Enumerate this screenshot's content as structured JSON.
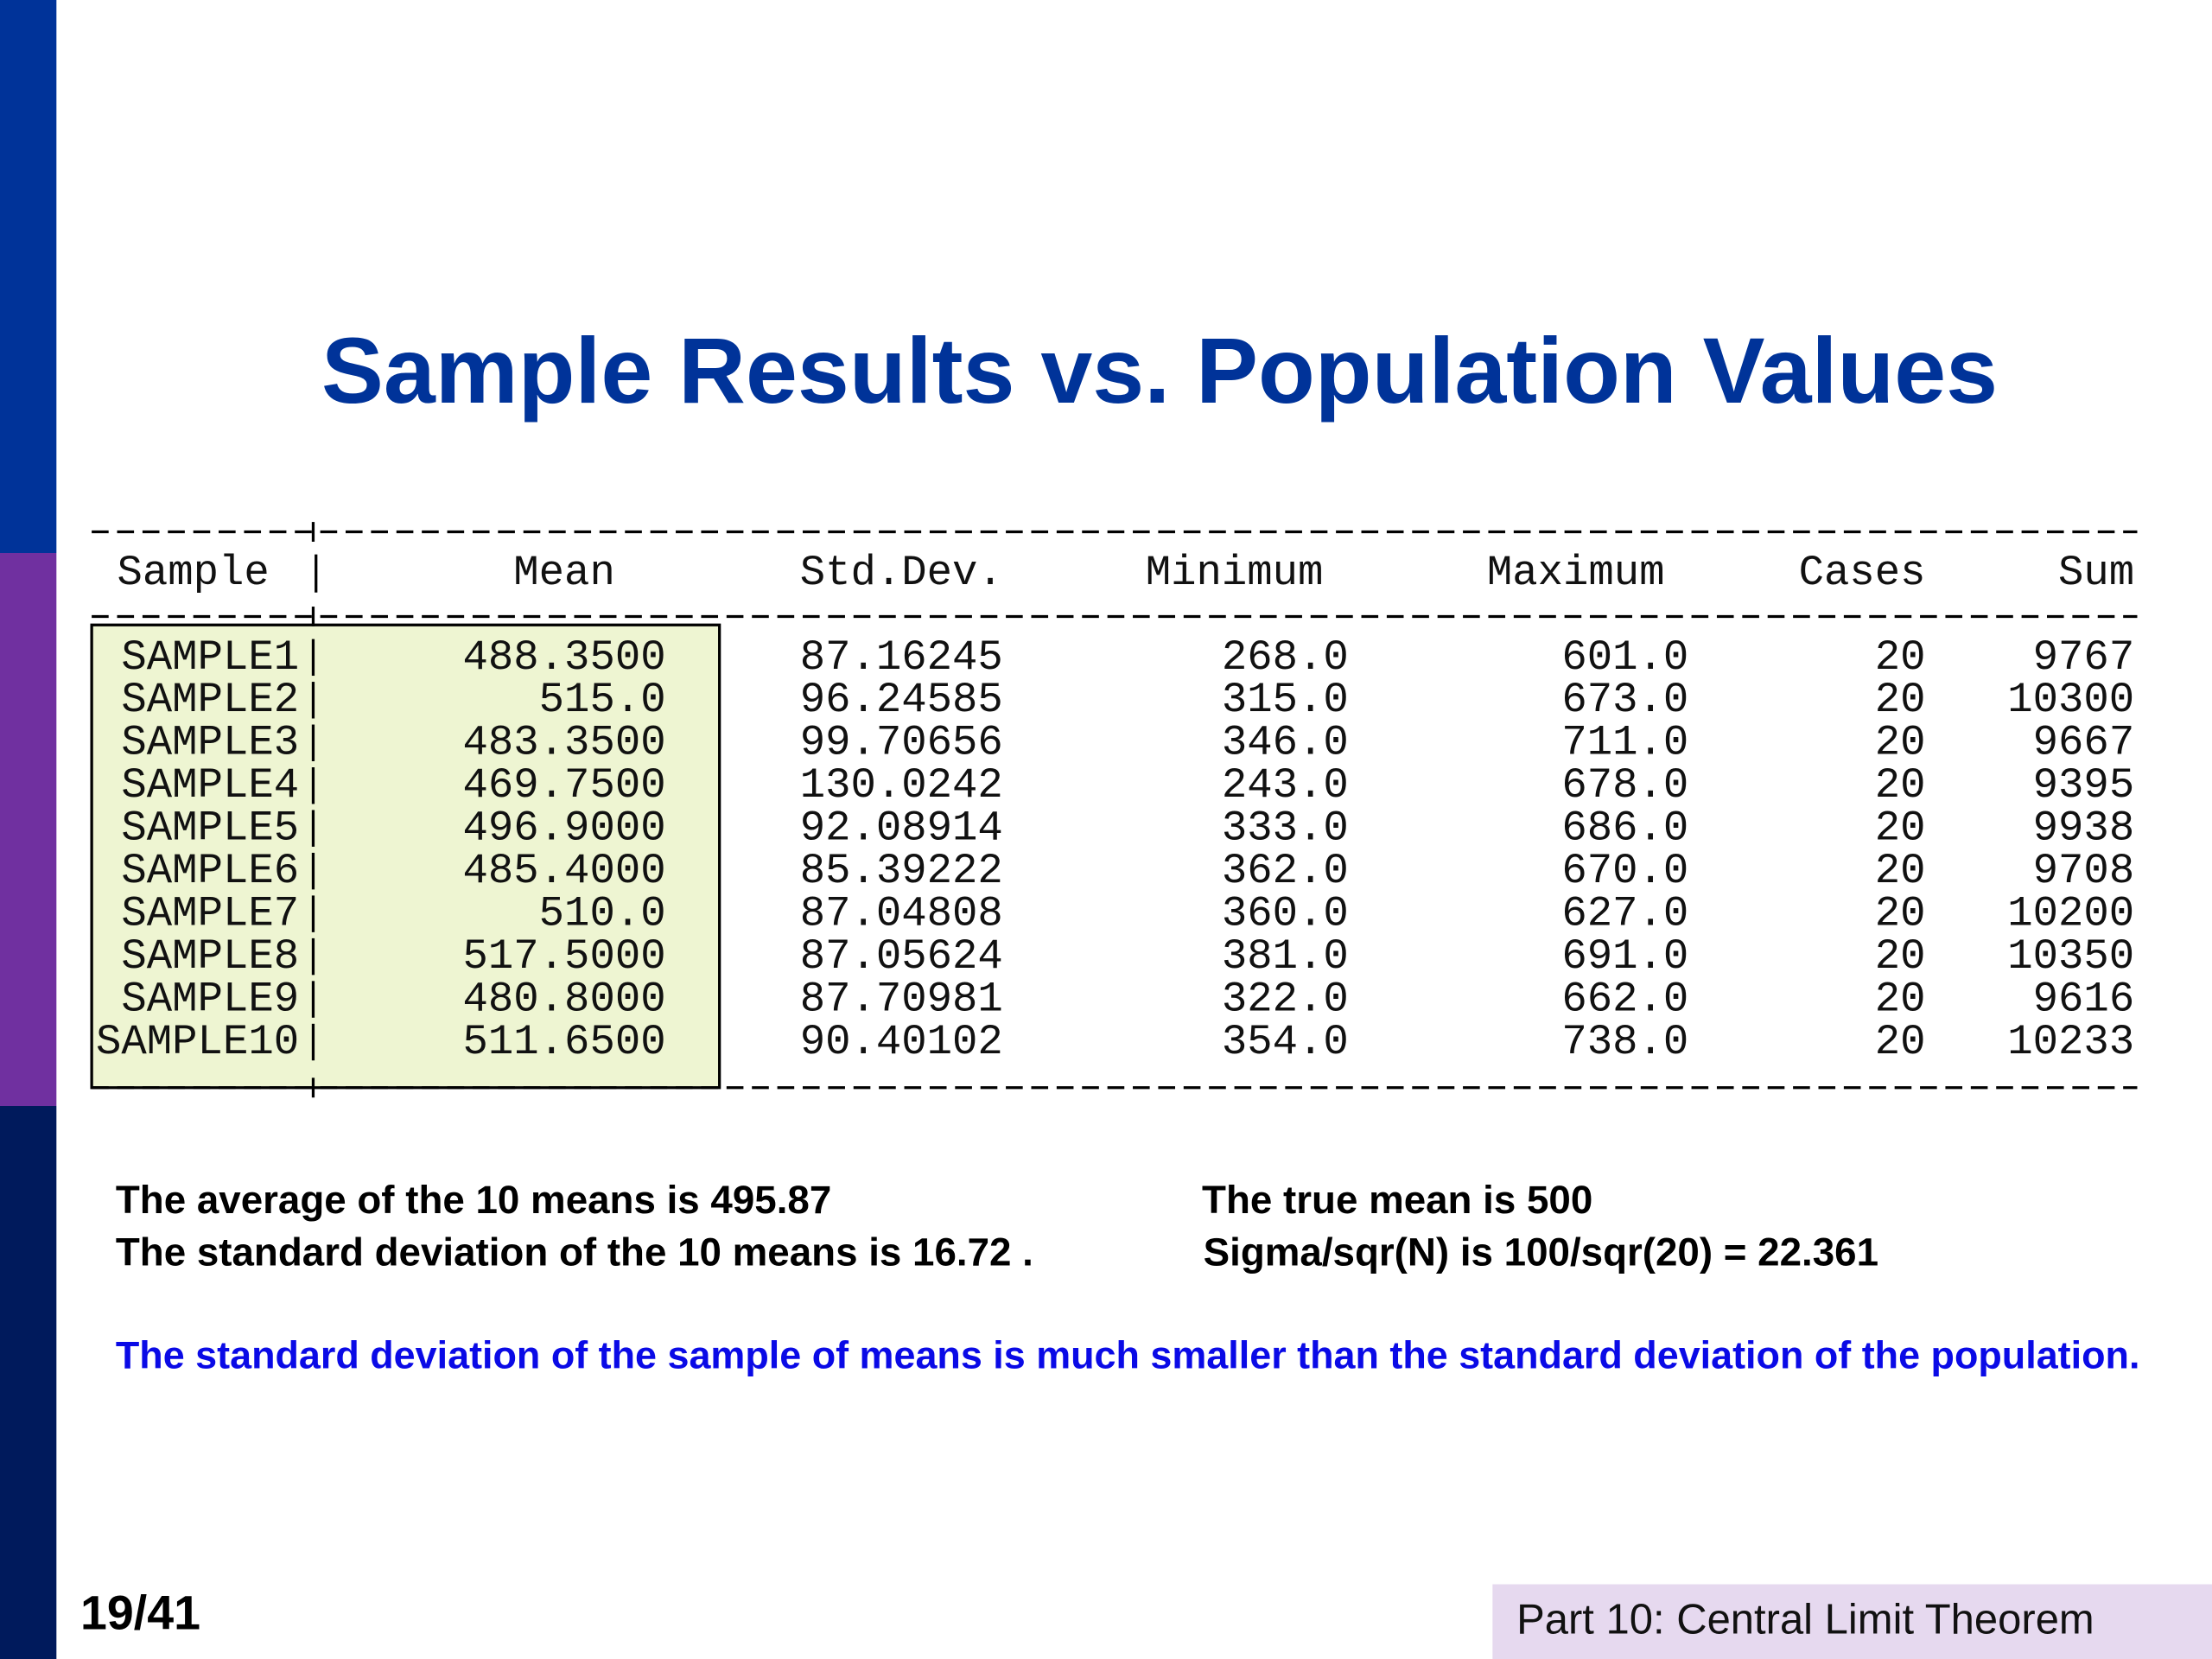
{
  "title": "Sample Results vs. Population Values",
  "table": {
    "header": [
      "Sample",
      "Mean",
      "Std.Dev.",
      "Minimum",
      "Maximum",
      "Cases",
      "Sum"
    ],
    "rows": [
      [
        "SAMPLE1",
        "488.3500",
        "87.16245",
        "268.0",
        "601.0",
        "20",
        "9767"
      ],
      [
        "SAMPLE2",
        "515.0",
        "96.24585",
        "315.0",
        "673.0",
        "20",
        "10300"
      ],
      [
        "SAMPLE3",
        "483.3500",
        "99.70656",
        "346.0",
        "711.0",
        "20",
        "9667"
      ],
      [
        "SAMPLE4",
        "469.7500",
        "130.0242",
        "243.0",
        "678.0",
        "20",
        "9395"
      ],
      [
        "SAMPLE5",
        "496.9000",
        "92.08914",
        "333.0",
        "686.0",
        "20",
        "9938"
      ],
      [
        "SAMPLE6",
        "485.4000",
        "85.39222",
        "362.0",
        "670.0",
        "20",
        "9708"
      ],
      [
        "SAMPLE7",
        "510.0",
        "87.04808",
        "360.0",
        "627.0",
        "20",
        "10200"
      ],
      [
        "SAMPLE8",
        "517.5000",
        "87.05624",
        "381.0",
        "691.0",
        "20",
        "10350"
      ],
      [
        "SAMPLE9",
        "480.8000",
        "87.70981",
        "322.0",
        "662.0",
        "20",
        "9616"
      ],
      [
        "SAMPLE10",
        "511.6500",
        "90.40102",
        "354.0",
        "738.0",
        "20",
        "10233"
      ]
    ]
  },
  "notes": {
    "left": [
      "The average of the 10 means is 495.87",
      "The standard deviation of the 10 means is 16.72 ."
    ],
    "right": [
      "The true mean is 500",
      "Sigma/sqr(N) is 100/sqr(20) = 22.361"
    ],
    "highlight": "The standard deviation of the sample of means is much smaller than the standard deviation of the population."
  },
  "footer": {
    "page": "19/41",
    "section": "Part 10: Central Limit Theorem"
  }
}
